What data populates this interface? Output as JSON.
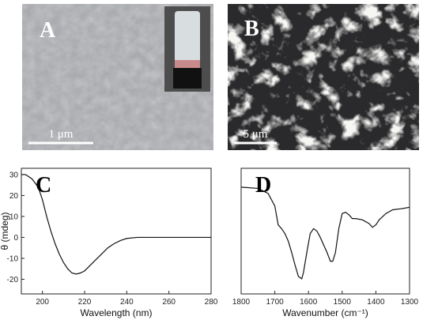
{
  "panels": [
    {
      "label": "A",
      "scale_bar": "1 μm"
    },
    {
      "label": "B",
      "scale_bar": "5 μm"
    }
  ],
  "chart_data": [
    {
      "type": "line",
      "label": "C",
      "xlabel": "Wavelength (nm)",
      "ylabel": "θ (mdeg)",
      "x": [
        190,
        192,
        195,
        198,
        200,
        202,
        204,
        206,
        208,
        210,
        212,
        214,
        216,
        218,
        220,
        222,
        225,
        228,
        231,
        234,
        237,
        240,
        245,
        250,
        260,
        270,
        280
      ],
      "values": [
        30,
        30,
        28,
        24,
        18,
        10,
        3,
        -3,
        -8,
        -12,
        -15,
        -17,
        -17.5,
        -17,
        -16,
        -14,
        -11,
        -8,
        -5,
        -3,
        -1.5,
        -0.5,
        0,
        0,
        0,
        0,
        0
      ],
      "color": "#111111",
      "xlim": [
        190,
        280
      ],
      "xticks": [
        200,
        220,
        240,
        260,
        280
      ],
      "ylim": [
        -27,
        33
      ],
      "yticks": [
        -20,
        -10,
        0,
        10,
        20,
        30
      ]
    },
    {
      "type": "line",
      "label": "D",
      "xlabel": "Wavenumber (cm⁻¹)",
      "x": [
        1800,
        1750,
        1720,
        1700,
        1690,
        1680,
        1670,
        1660,
        1650,
        1640,
        1630,
        1620,
        1615,
        1605,
        1595,
        1585,
        1575,
        1565,
        1555,
        1545,
        1535,
        1528,
        1520,
        1510,
        1500,
        1490,
        1480,
        1470,
        1460,
        1440,
        1420,
        1410,
        1400,
        1390,
        1370,
        1350,
        1320,
        1300
      ],
      "values": [
        85,
        84,
        80,
        70,
        55,
        52,
        48,
        42,
        33,
        23,
        14,
        12,
        17,
        33,
        48,
        52,
        50,
        45,
        39,
        33,
        26,
        26,
        33,
        52,
        64,
        65,
        63,
        60,
        60,
        59,
        56,
        53,
        55,
        59,
        64,
        67,
        68,
        69
      ],
      "color": "#111111",
      "xlim": [
        1800,
        1300
      ],
      "xticks": [
        1800,
        1700,
        1600,
        1500,
        1400,
        1300
      ],
      "ylim": [
        0,
        100
      ]
    }
  ]
}
